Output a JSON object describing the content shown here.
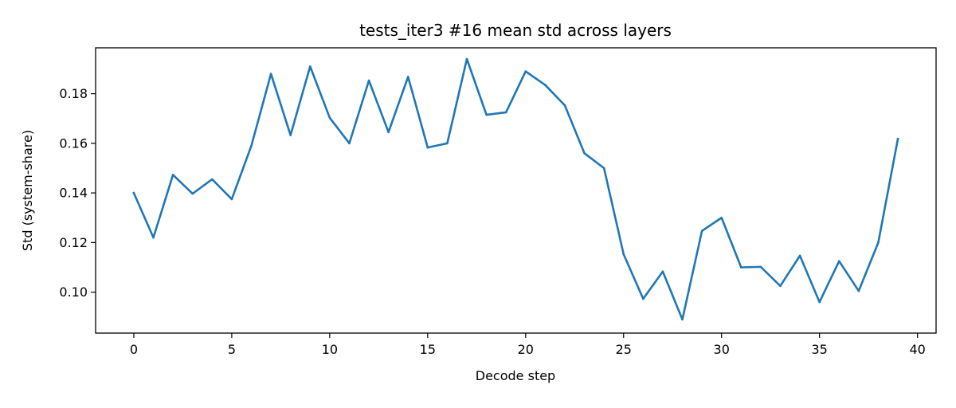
{
  "chart_data": {
    "type": "line",
    "title": "tests_iter3 #16 mean std across layers",
    "xlabel": "Decode step",
    "ylabel": "Std (system-share)",
    "xlim": [
      -1.95,
      40.95
    ],
    "ylim": [
      0.0835,
      0.1985
    ],
    "xticks": [
      0,
      5,
      10,
      15,
      20,
      25,
      30,
      35,
      40
    ],
    "xtick_labels": [
      "0",
      "5",
      "10",
      "15",
      "20",
      "25",
      "30",
      "35",
      "40"
    ],
    "yticks": [
      0.1,
      0.12,
      0.14,
      0.16,
      0.18
    ],
    "ytick_labels": [
      "0.10",
      "0.12",
      "0.14",
      "0.16",
      "0.18"
    ],
    "grid": false,
    "series": [
      {
        "name": "mean std",
        "color": "#1f77b4",
        "x": [
          0,
          1,
          2,
          3,
          4,
          5,
          6,
          7,
          8,
          9,
          10,
          11,
          12,
          13,
          14,
          15,
          16,
          17,
          18,
          19,
          20,
          21,
          22,
          23,
          24,
          25,
          26,
          27,
          28,
          29,
          30,
          31,
          32,
          33,
          34,
          35,
          36,
          37,
          38,
          39
        ],
        "values": [
          0.14,
          0.122,
          0.1473,
          0.1397,
          0.1455,
          0.1375,
          0.159,
          0.188,
          0.1633,
          0.191,
          0.1703,
          0.16,
          0.1853,
          0.1645,
          0.1868,
          0.1583,
          0.16,
          0.194,
          0.1715,
          0.1725,
          0.189,
          0.1835,
          0.1753,
          0.156,
          0.15,
          0.1153,
          0.0973,
          0.1083,
          0.089,
          0.1247,
          0.13,
          0.11,
          0.1102,
          0.1025,
          0.1147,
          0.096,
          0.1125,
          0.1005,
          0.12,
          0.1618
        ]
      }
    ]
  }
}
